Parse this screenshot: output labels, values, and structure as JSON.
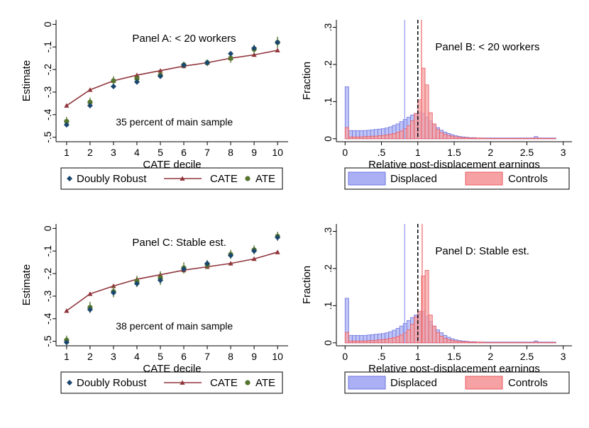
{
  "colors": {
    "dr": "#1a476f",
    "cate": "#90353b",
    "ate": "#55752f",
    "displaced_fill": "#aab0f3",
    "displaced_edge": "#6f75e0",
    "controls_fill": "#f6a1a3",
    "controls_edge": "#ea5a60",
    "displaced_mean_line": "#9aa0f0",
    "controls_mean_line": "#f07070"
  },
  "chart_data": [
    {
      "id": "A",
      "type": "line",
      "annotation": "Panel A: < 20 workers",
      "note": "35 percent of main sample",
      "xlabel": "CATE decile",
      "ylabel": "Estimate",
      "xlim": [
        0.55,
        10.45
      ],
      "ylim": [
        -0.52,
        0.02
      ],
      "x_ticks": [
        "1",
        "2",
        "3",
        "4",
        "5",
        "6",
        "7",
        "8",
        "9",
        "10"
      ],
      "y_ticks": [
        {
          "value": 0,
          "label": "0"
        },
        {
          "value": -0.1,
          "label": "-.1"
        },
        {
          "value": -0.2,
          "label": "-.2"
        },
        {
          "value": -0.3,
          "label": "-.3"
        },
        {
          "value": -0.4,
          "label": "-.4"
        },
        {
          "value": -0.5,
          "label": "-.5"
        }
      ],
      "legend": [
        "Doubly Robust",
        "CATE",
        "ATE"
      ],
      "x": [
        1,
        2,
        3,
        4,
        5,
        6,
        7,
        8,
        9,
        10
      ],
      "series": [
        {
          "name": "CATE",
          "values": [
            -0.36,
            -0.29,
            -0.25,
            -0.225,
            -0.205,
            -0.185,
            -0.17,
            -0.15,
            -0.135,
            -0.115
          ]
        },
        {
          "name": "ATE",
          "values": [
            -0.43,
            -0.345,
            -0.25,
            -0.24,
            -0.225,
            -0.18,
            -0.17,
            -0.15,
            -0.11,
            -0.08
          ],
          "ci": [
            0.02,
            0.02,
            0.02,
            0.015,
            0.015,
            0.015,
            0.015,
            0.02,
            0.02,
            0.025
          ]
        },
        {
          "name": "Doubly Robust",
          "values": [
            -0.445,
            -0.36,
            -0.275,
            -0.255,
            -0.23,
            -0.18,
            -0.17,
            -0.13,
            -0.105,
            -0.08
          ]
        }
      ]
    },
    {
      "id": "B",
      "type": "bar",
      "annotation": "Panel B: < 20 workers",
      "xlabel": "Relative post-displacement earnings",
      "ylabel": "Fraction",
      "xlim": [
        -0.12,
        3.12
      ],
      "ylim": [
        -0.008,
        0.32
      ],
      "x_ticks": [
        {
          "value": 0,
          "label": "0"
        },
        {
          "value": 0.5,
          "label": ".5"
        },
        {
          "value": 1,
          "label": "1"
        },
        {
          "value": 1.5,
          "label": "1.5"
        },
        {
          "value": 2,
          "label": "2"
        },
        {
          "value": 2.5,
          "label": "2.5"
        },
        {
          "value": 3,
          "label": "3"
        }
      ],
      "y_ticks": [
        {
          "value": 0,
          "label": "0"
        },
        {
          "value": 0.1,
          "label": ".1"
        },
        {
          "value": 0.2,
          "label": ".2"
        },
        {
          "value": 0.3,
          "label": ".3"
        }
      ],
      "legend": [
        "Displaced",
        "Controls"
      ],
      "bin_start": 0,
      "bin_width": 0.05,
      "series": [
        {
          "name": "Displaced",
          "values": [
            0.14,
            0.022,
            0.022,
            0.022,
            0.022,
            0.022,
            0.023,
            0.024,
            0.025,
            0.026,
            0.027,
            0.029,
            0.032,
            0.036,
            0.04,
            0.046,
            0.052,
            0.058,
            0.064,
            0.068,
            0.072,
            0.068,
            0.058,
            0.048,
            0.038,
            0.03,
            0.023,
            0.018,
            0.014,
            0.011,
            0.008,
            0.006,
            0.005,
            0.004,
            0.003,
            0.003,
            0.002,
            0.002,
            0.002,
            0.002,
            0.002,
            0.002,
            0.002,
            0.002,
            0.002,
            0.002,
            0.002,
            0.002,
            0.002,
            0.002,
            0.002,
            0.002,
            0.006,
            0.002,
            0.002,
            0.002,
            0.002,
            0.002
          ]
        },
        {
          "name": "Controls",
          "values": [
            0.03,
            0.005,
            0.005,
            0.005,
            0.005,
            0.006,
            0.006,
            0.007,
            0.007,
            0.008,
            0.009,
            0.01,
            0.012,
            0.014,
            0.017,
            0.021,
            0.027,
            0.035,
            0.048,
            0.068,
            0.105,
            0.19,
            0.145,
            0.07,
            0.04,
            0.025,
            0.017,
            0.012,
            0.009,
            0.007,
            0.005,
            0.004,
            0.003,
            0.003,
            0.002,
            0.002,
            0.002,
            0.002,
            0.001,
            0.001,
            0.001,
            0.001,
            0.001,
            0.001,
            0.001,
            0.001,
            0.001,
            0.001,
            0.001,
            0.001,
            0.001,
            0.001,
            0.002,
            0.001,
            0.001,
            0.001,
            0.001,
            0.001
          ]
        }
      ],
      "reference_lines": [
        {
          "name": "Displaced mean",
          "x": 0.82
        },
        {
          "name": "Controls mean",
          "x": 1.05
        },
        {
          "name": "Reference",
          "x": 1.0,
          "style": "dashed"
        }
      ]
    },
    {
      "id": "C",
      "type": "line",
      "annotation": "Panel C: Stable est.",
      "note": "38 percent of main sample",
      "xlabel": "CATE decile",
      "ylabel": "Estimate",
      "xlim": [
        0.55,
        10.45
      ],
      "ylim": [
        -0.52,
        0.02
      ],
      "x_ticks": [
        "1",
        "2",
        "3",
        "4",
        "5",
        "6",
        "7",
        "8",
        "9",
        "10"
      ],
      "y_ticks": [
        {
          "value": 0,
          "label": "0"
        },
        {
          "value": -0.1,
          "label": "-.1"
        },
        {
          "value": -0.2,
          "label": "-.2"
        },
        {
          "value": -0.3,
          "label": "-.3"
        },
        {
          "value": -0.4,
          "label": "-.4"
        },
        {
          "value": -0.5,
          "label": "-.5"
        }
      ],
      "legend": [
        "Doubly Robust",
        "CATE",
        "ATE"
      ],
      "x": [
        1,
        2,
        3,
        4,
        5,
        6,
        7,
        8,
        9,
        10
      ],
      "series": [
        {
          "name": "CATE",
          "values": [
            -0.365,
            -0.29,
            -0.255,
            -0.225,
            -0.205,
            -0.185,
            -0.17,
            -0.155,
            -0.135,
            -0.105
          ]
        },
        {
          "name": "ATE",
          "values": [
            -0.495,
            -0.35,
            -0.28,
            -0.235,
            -0.22,
            -0.175,
            -0.16,
            -0.115,
            -0.095,
            -0.035
          ],
          "ci": [
            0.02,
            0.025,
            0.025,
            0.025,
            0.03,
            0.025,
            0.02,
            0.02,
            0.02,
            0.02
          ]
        },
        {
          "name": "Doubly Robust",
          "values": [
            -0.505,
            -0.36,
            -0.285,
            -0.245,
            -0.23,
            -0.18,
            -0.155,
            -0.12,
            -0.1,
            -0.04
          ]
        }
      ]
    },
    {
      "id": "D",
      "type": "bar",
      "annotation": "Panel D: Stable est.",
      "xlabel": "Relative post-displacement earnings",
      "ylabel": "Fraction",
      "xlim": [
        -0.12,
        3.12
      ],
      "ylim": [
        -0.008,
        0.32
      ],
      "x_ticks": [
        {
          "value": 0,
          "label": "0"
        },
        {
          "value": 0.5,
          "label": ".5"
        },
        {
          "value": 1,
          "label": "1"
        },
        {
          "value": 1.5,
          "label": "1.5"
        },
        {
          "value": 2,
          "label": "2"
        },
        {
          "value": 2.5,
          "label": "2.5"
        },
        {
          "value": 3,
          "label": "3"
        }
      ],
      "y_ticks": [
        {
          "value": 0,
          "label": "0"
        },
        {
          "value": 0.1,
          "label": ".1"
        },
        {
          "value": 0.2,
          "label": ".2"
        },
        {
          "value": 0.3,
          "label": ".3"
        }
      ],
      "legend": [
        "Displaced",
        "Controls"
      ],
      "bin_start": 0,
      "bin_width": 0.05,
      "series": [
        {
          "name": "Displaced",
          "values": [
            0.12,
            0.02,
            0.02,
            0.02,
            0.02,
            0.02,
            0.021,
            0.022,
            0.023,
            0.024,
            0.025,
            0.027,
            0.03,
            0.034,
            0.039,
            0.045,
            0.052,
            0.06,
            0.068,
            0.075,
            0.08,
            0.085,
            0.072,
            0.058,
            0.045,
            0.035,
            0.027,
            0.02,
            0.015,
            0.011,
            0.008,
            0.006,
            0.005,
            0.004,
            0.003,
            0.003,
            0.002,
            0.002,
            0.002,
            0.002,
            0.002,
            0.002,
            0.002,
            0.002,
            0.002,
            0.002,
            0.002,
            0.002,
            0.002,
            0.002,
            0.002,
            0.002,
            0.005,
            0.002,
            0.002,
            0.002,
            0.002,
            0.002
          ]
        },
        {
          "name": "Controls",
          "values": [
            0.028,
            0.005,
            0.005,
            0.005,
            0.005,
            0.005,
            0.006,
            0.006,
            0.007,
            0.008,
            0.009,
            0.01,
            0.012,
            0.014,
            0.017,
            0.021,
            0.027,
            0.035,
            0.05,
            0.07,
            0.085,
            0.18,
            0.195,
            0.075,
            0.045,
            0.028,
            0.018,
            0.012,
            0.009,
            0.007,
            0.005,
            0.004,
            0.003,
            0.003,
            0.002,
            0.002,
            0.002,
            0.002,
            0.001,
            0.001,
            0.001,
            0.001,
            0.001,
            0.001,
            0.001,
            0.001,
            0.001,
            0.001,
            0.001,
            0.001,
            0.001,
            0.001,
            0.002,
            0.001,
            0.001,
            0.001,
            0.001,
            0.001
          ]
        }
      ],
      "reference_lines": [
        {
          "name": "Displaced mean",
          "x": 0.82
        },
        {
          "name": "Controls mean",
          "x": 1.06
        },
        {
          "name": "Reference",
          "x": 1.0,
          "style": "dashed"
        }
      ]
    }
  ]
}
